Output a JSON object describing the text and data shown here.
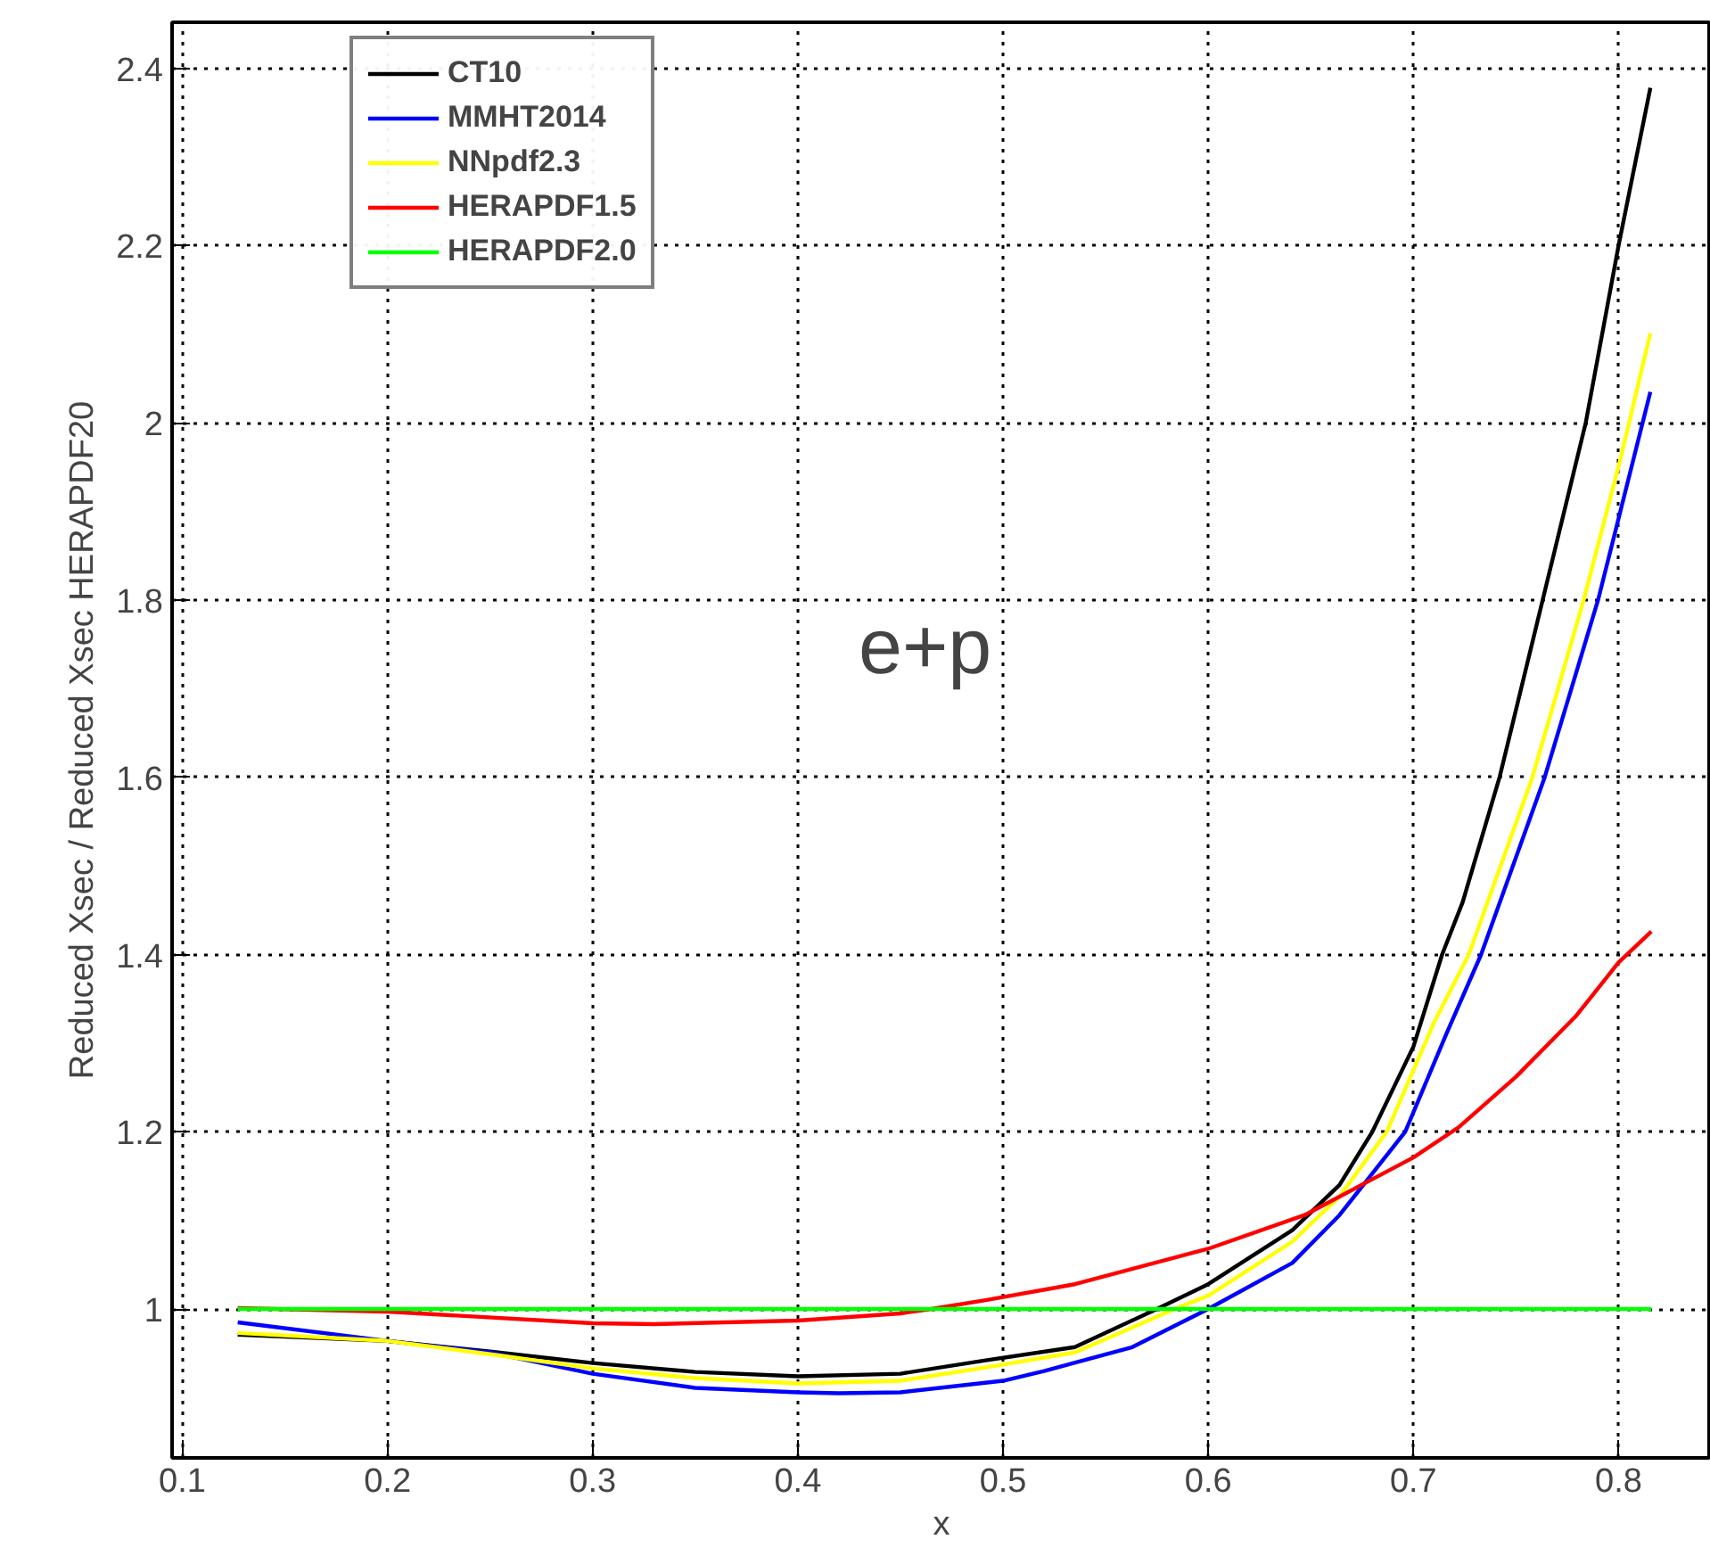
{
  "chart_data": {
    "type": "line",
    "xlabel": "x",
    "ylabel": "Reduced Xsec / Reduced Xsec HERAPDF20",
    "annotations": [
      "e+p"
    ],
    "xlim": [
      0.095,
      0.845
    ],
    "ylim": [
      0.832,
      2.452
    ],
    "xticks": [
      0.1,
      0.2,
      0.3,
      0.4,
      0.5,
      0.6,
      0.7,
      0.8
    ],
    "yticks": [
      1,
      1.2,
      1.4,
      1.6,
      1.8,
      2,
      2.2,
      2.4
    ],
    "grid": true,
    "legend": "top left",
    "line_style": "solid",
    "marker": "none",
    "series": [
      {
        "name": "CT10",
        "color": "#000000",
        "x": [
          0.127,
          0.2,
          0.25,
          0.3,
          0.35,
          0.4,
          0.45,
          0.4915,
          0.535,
          0.575,
          0.6,
          0.641,
          0.664,
          0.68,
          0.7,
          0.714,
          0.724,
          0.742,
          0.763,
          0.784,
          0.8,
          0.8155
        ],
        "values": [
          0.971,
          0.964,
          0.952,
          0.939,
          0.929,
          0.924,
          0.927,
          0.942,
          0.957,
          1.0,
          1.028,
          1.089,
          1.14,
          1.2,
          1.296,
          1.4,
          1.459,
          1.6,
          1.8,
          2.0,
          2.2,
          2.378
        ]
      },
      {
        "name": "MMHT2014",
        "color": "#0000ff",
        "x": [
          0.127,
          0.2,
          0.25,
          0.3,
          0.35,
          0.4,
          0.42,
          0.45,
          0.5,
          0.52,
          0.563,
          0.6,
          0.641,
          0.664,
          0.678,
          0.696,
          0.716,
          0.733,
          0.764,
          0.79,
          0.8,
          0.8155
        ],
        "values": [
          0.985,
          0.964,
          0.951,
          0.927,
          0.911,
          0.906,
          0.905,
          0.906,
          0.919,
          0.93,
          0.957,
          1.0,
          1.052,
          1.106,
          1.147,
          1.2,
          1.31,
          1.4,
          1.6,
          1.8,
          1.892,
          2.035
        ]
      },
      {
        "name": "NNpdf2.3",
        "color": "#ffff00",
        "x": [
          0.127,
          0.2,
          0.25,
          0.3,
          0.35,
          0.4,
          0.45,
          0.4915,
          0.535,
          0.5836,
          0.6,
          0.641,
          0.664,
          0.687,
          0.71,
          0.727,
          0.758,
          0.783,
          0.801,
          0.8155
        ],
        "values": [
          0.973,
          0.964,
          0.949,
          0.933,
          0.922,
          0.916,
          0.919,
          0.934,
          0.951,
          1.0,
          1.015,
          1.076,
          1.127,
          1.2,
          1.323,
          1.4,
          1.6,
          1.8,
          1.96,
          2.101
        ]
      },
      {
        "name": "HERAPDF1.5",
        "color": "#ff0000",
        "x": [
          0.127,
          0.2,
          0.3,
          0.33,
          0.4,
          0.45,
          0.465,
          0.4915,
          0.535,
          0.6,
          0.647,
          0.678,
          0.7,
          0.722,
          0.75,
          0.779,
          0.8,
          0.816
        ],
        "values": [
          1.001,
          0.997,
          0.984,
          0.983,
          0.987,
          0.995,
          1.0,
          1.01,
          1.028,
          1.068,
          1.106,
          1.144,
          1.171,
          1.205,
          1.262,
          1.33,
          1.391,
          1.426
        ]
      },
      {
        "name": "HERAPDF2.0",
        "color": "#00ff00",
        "x": [
          0.127,
          0.816
        ],
        "values": [
          1.0,
          1.0
        ]
      }
    ]
  }
}
